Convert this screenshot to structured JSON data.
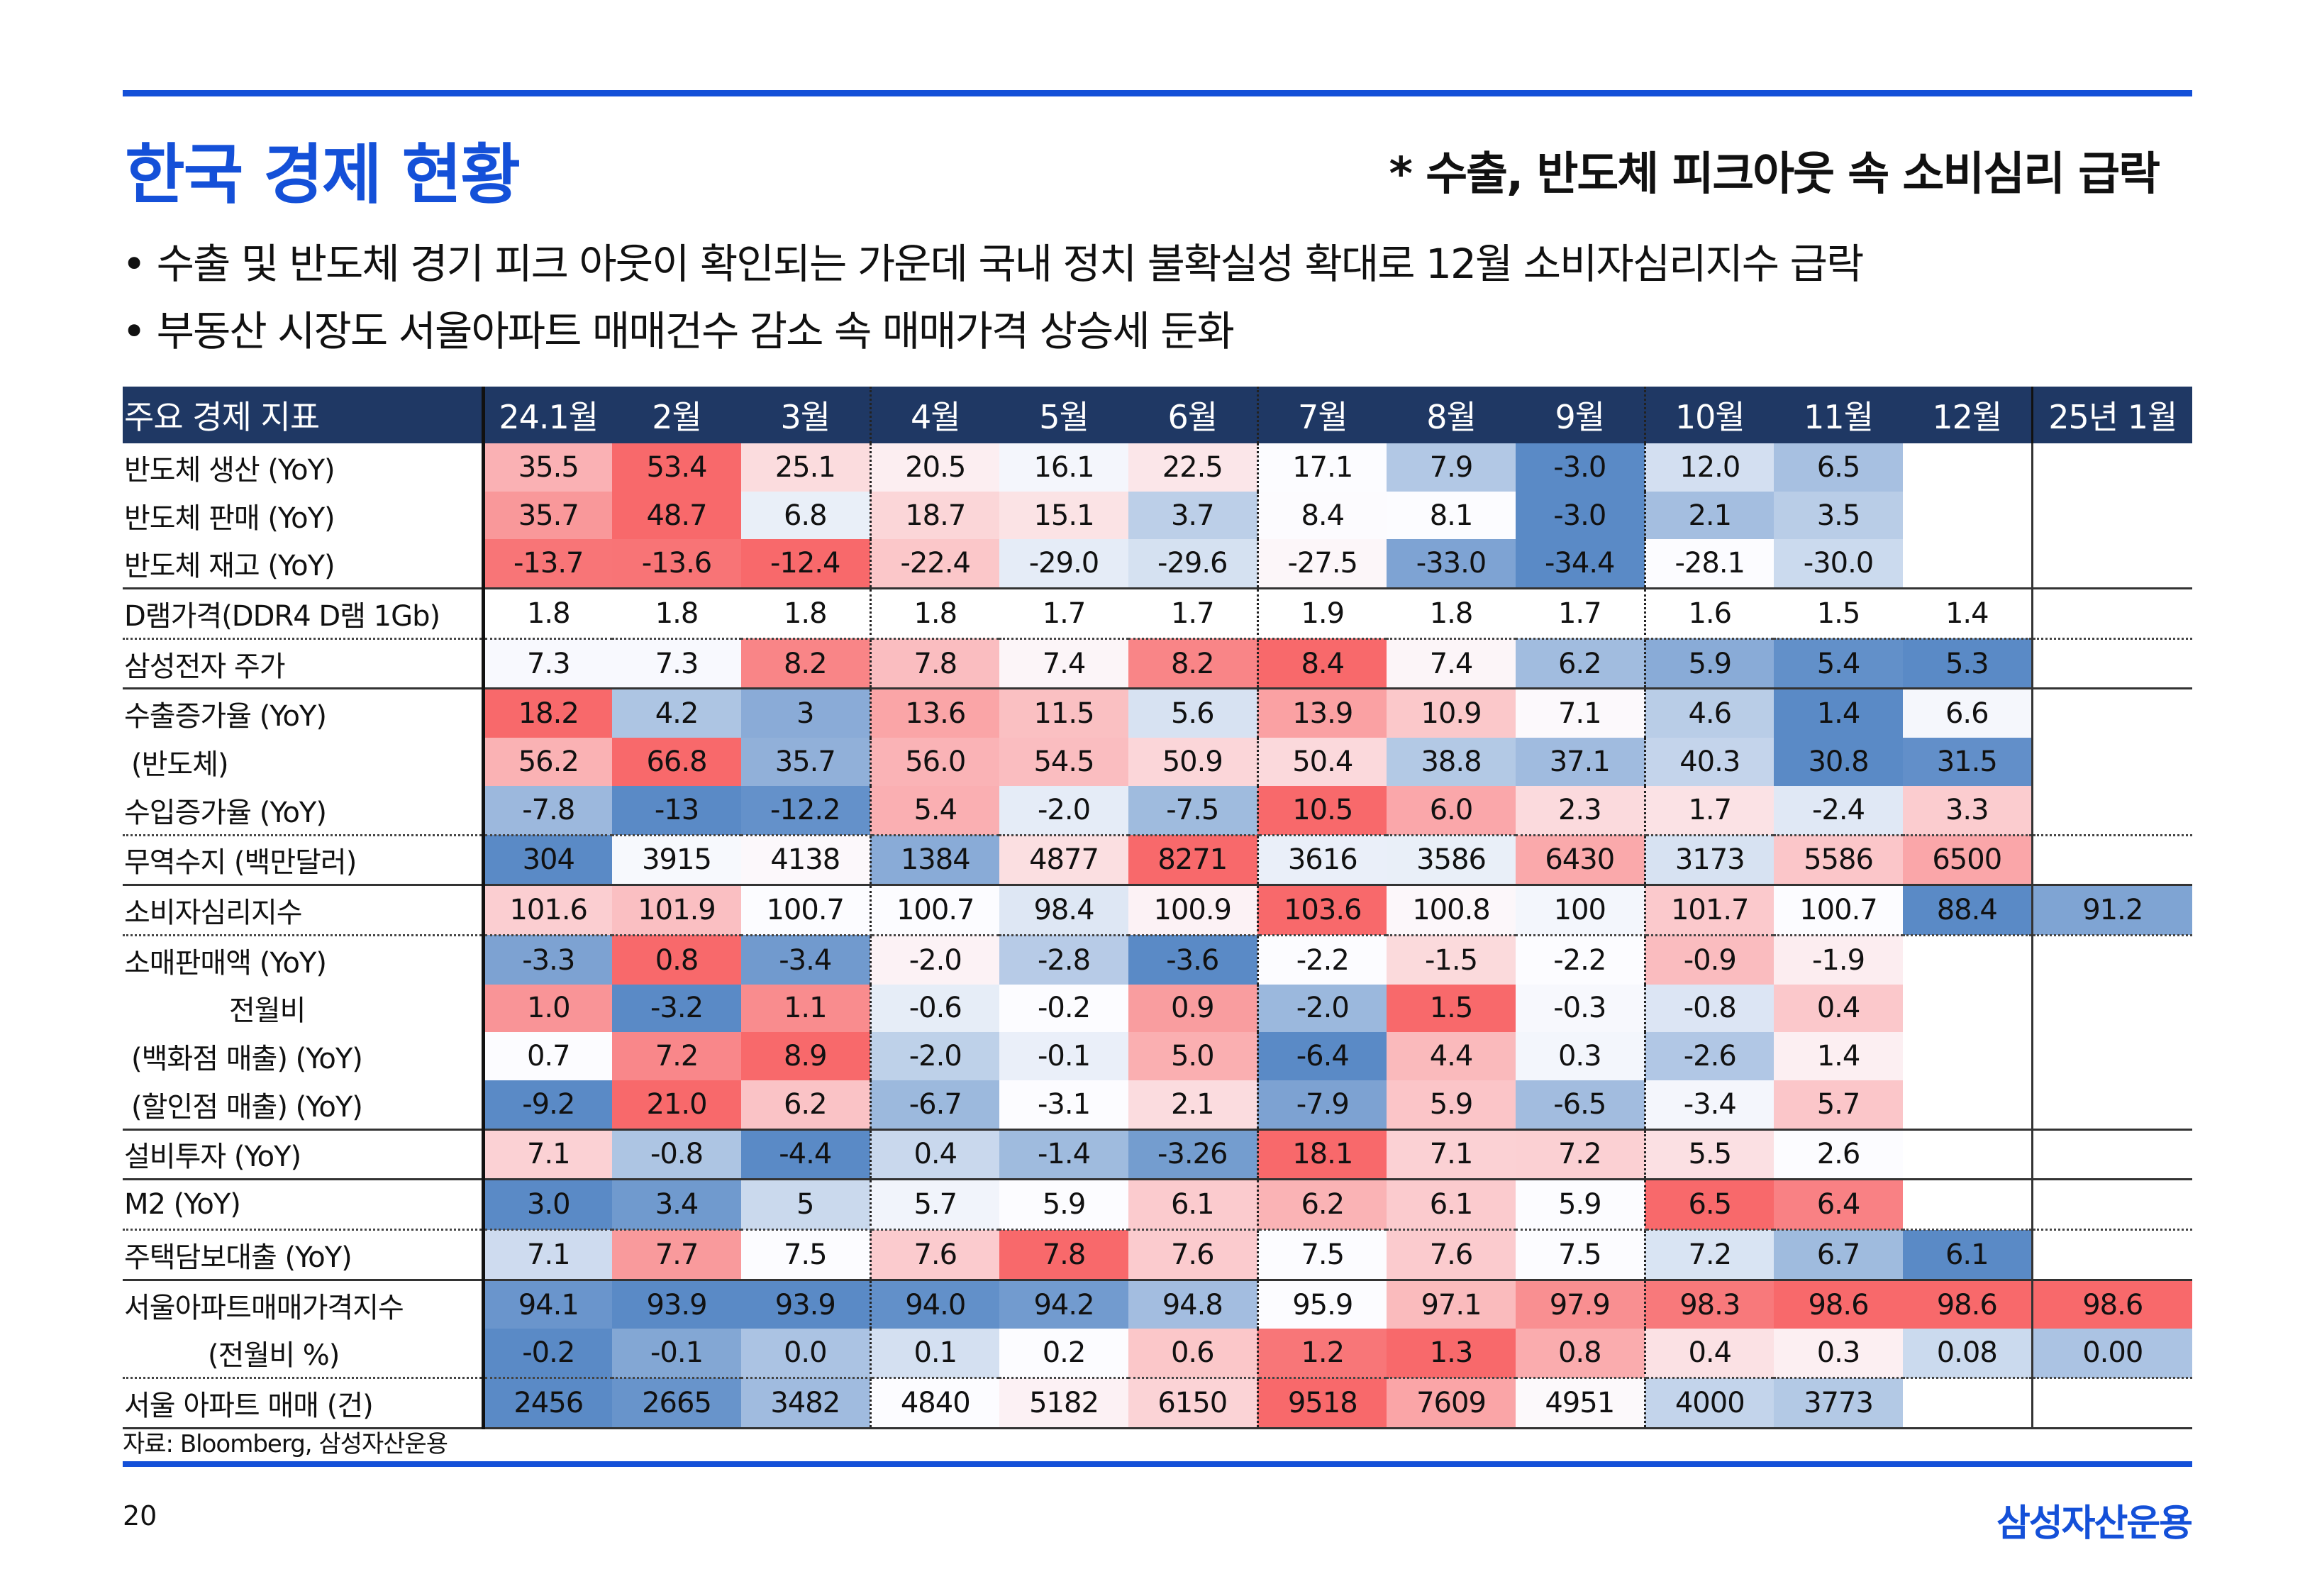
{
  "title": "한국 경제 현황",
  "subtitle": "* 수출, 반도체 피크아웃 속 소비심리 급락",
  "bullets": [
    "• 수출 및 반도체 경기 피크 아웃이 확인되는 가운데 국내 정치 불확실성 확대로 12월 소비자심리지수 급락",
    "• 부동산 시장도 서울아파트 매매건수 감소 속 매매가격 상승세 둔화"
  ],
  "colors": {
    "accent": "#1450d8",
    "header": "#1f3864",
    "low": "#5a8ac6",
    "mid": "#fcfcff",
    "high": "#f8696b"
  },
  "table": {
    "header_label": "주요 경제 지표",
    "columns": [
      "24.1월",
      "2월",
      "3월",
      "4월",
      "5월",
      "6월",
      "7월",
      "8월",
      "9월",
      "10월",
      "11월",
      "12월",
      "25년 1월"
    ],
    "rows": [
      {
        "label": "반도체 생산 (YoY)",
        "heat": true,
        "values": [
          "35.5",
          "53.4",
          "25.1",
          "20.5",
          "16.1",
          "22.5",
          "17.1",
          "7.9",
          "-3.0",
          "12.0",
          "6.5",
          "",
          ""
        ]
      },
      {
        "label": "반도체 판매 (YoY)",
        "heat": true,
        "values": [
          "35.7",
          "48.7",
          "6.8",
          "18.7",
          "15.1",
          "3.7",
          "8.4",
          "8.1",
          "-3.0",
          "2.1",
          "3.5",
          "",
          ""
        ]
      },
      {
        "label": "반도체 재고 (YoY)",
        "heat": true,
        "values": [
          "-13.7",
          "-13.6",
          "-12.4",
          "-22.4",
          "-29.0",
          "-29.6",
          "-27.5",
          "-33.0",
          "-34.4",
          "-28.1",
          "-30.0",
          "",
          ""
        ]
      },
      {
        "label": "D램가격(DDR4 D램 1Gb)",
        "heat": false,
        "values": [
          "1.8",
          "1.8",
          "1.8",
          "1.8",
          "1.7",
          "1.7",
          "1.9",
          "1.8",
          "1.7",
          "1.6",
          "1.5",
          "1.4",
          ""
        ]
      },
      {
        "label": "삼성전자 주가",
        "heat": true,
        "values": [
          "7.3",
          "7.3",
          "8.2",
          "7.8",
          "7.4",
          "8.2",
          "8.4",
          "7.4",
          "6.2",
          "5.9",
          "5.4",
          "5.3",
          ""
        ]
      },
      {
        "label": "수출증가율 (YoY)",
        "heat": true,
        "values": [
          "18.2",
          "4.2",
          "3",
          "13.6",
          "11.5",
          "5.6",
          "13.9",
          "10.9",
          "7.1",
          "4.6",
          "1.4",
          "6.6",
          ""
        ]
      },
      {
        "label": "(반도체)",
        "heat": true,
        "values": [
          "56.2",
          "66.8",
          "35.7",
          "56.0",
          "54.5",
          "50.9",
          "50.4",
          "38.8",
          "37.1",
          "40.3",
          "30.8",
          "31.5",
          ""
        ]
      },
      {
        "label": "수입증가율 (YoY)",
        "heat": true,
        "values": [
          "-7.8",
          "-13",
          "-12.2",
          "5.4",
          "-2.0",
          "-7.5",
          "10.5",
          "6.0",
          "2.3",
          "1.7",
          "-2.4",
          "3.3",
          ""
        ]
      },
      {
        "label": "무역수지 (백만달러)",
        "heat": true,
        "values": [
          "304",
          "3915",
          "4138",
          "1384",
          "4877",
          "8271",
          "3616",
          "3586",
          "6430",
          "3173",
          "5586",
          "6500",
          ""
        ]
      },
      {
        "label": "소비자심리지수",
        "heat": true,
        "values": [
          "101.6",
          "101.9",
          "100.7",
          "100.7",
          "98.4",
          "100.9",
          "103.6",
          "100.8",
          "100",
          "101.7",
          "100.7",
          "88.4",
          "91.2"
        ]
      },
      {
        "label": "소매판매액 (YoY)",
        "heat": true,
        "values": [
          "-3.3",
          "0.8",
          "-3.4",
          "-2.0",
          "-2.8",
          "-3.6",
          "-2.2",
          "-1.5",
          "-2.2",
          "-0.9",
          "-1.9",
          "",
          ""
        ]
      },
      {
        "label": "전월비",
        "heat": true,
        "values": [
          "1.0",
          "-3.2",
          "1.1",
          "-0.6",
          "-0.2",
          "0.9",
          "-2.0",
          "1.5",
          "-0.3",
          "-0.8",
          "0.4",
          "",
          ""
        ]
      },
      {
        "label": "(백화점 매출) (YoY)",
        "heat": true,
        "values": [
          "0.7",
          "7.2",
          "8.9",
          "-2.0",
          "-0.1",
          "5.0",
          "-6.4",
          "4.4",
          "0.3",
          "-2.6",
          "1.4",
          "",
          ""
        ]
      },
      {
        "label": "(할인점 매출) (YoY)",
        "heat": true,
        "values": [
          "-9.2",
          "21.0",
          "6.2",
          "-6.7",
          "-3.1",
          "2.1",
          "-7.9",
          "5.9",
          "-6.5",
          "-3.4",
          "5.7",
          "",
          ""
        ]
      },
      {
        "label": "설비투자 (YoY)",
        "heat": true,
        "values": [
          "7.1",
          "-0.8",
          "-4.4",
          "0.4",
          "-1.4",
          "-3.26",
          "18.1",
          "7.1",
          "7.2",
          "5.5",
          "2.6",
          "",
          ""
        ]
      },
      {
        "label": "M2 (YoY)",
        "heat": true,
        "values": [
          "3.0",
          "3.4",
          "5",
          "5.7",
          "5.9",
          "6.1",
          "6.2",
          "6.1",
          "5.9",
          "6.5",
          "6.4",
          "",
          ""
        ]
      },
      {
        "label": "주택담보대출 (YoY)",
        "heat": true,
        "values": [
          "7.1",
          "7.7",
          "7.5",
          "7.6",
          "7.8",
          "7.6",
          "7.5",
          "7.6",
          "7.5",
          "7.2",
          "6.7",
          "6.1",
          ""
        ]
      },
      {
        "label": "서울아파트매매가격지수",
        "heat": true,
        "values": [
          "94.1",
          "93.9",
          "93.9",
          "94.0",
          "94.2",
          "94.8",
          "95.9",
          "97.1",
          "97.9",
          "98.3",
          "98.6",
          "98.6",
          "98.6"
        ]
      },
      {
        "label": "(전월비 %)",
        "heat": true,
        "values": [
          "-0.2",
          "-0.1",
          "0.0",
          "0.1",
          "0.2",
          "0.6",
          "1.2",
          "1.3",
          "0.8",
          "0.4",
          "0.3",
          "0.08",
          "0.00"
        ]
      },
      {
        "label": "서울 아파트 매매 (건)",
        "heat": true,
        "values": [
          "2456",
          "2665",
          "3482",
          "4840",
          "5182",
          "6150",
          "9518",
          "7609",
          "4951",
          "4000",
          "3773",
          "",
          ""
        ]
      }
    ]
  },
  "source": "자료: Bloomberg, 삼성자산운용",
  "page_number": "20",
  "logo": "삼성자산운용"
}
